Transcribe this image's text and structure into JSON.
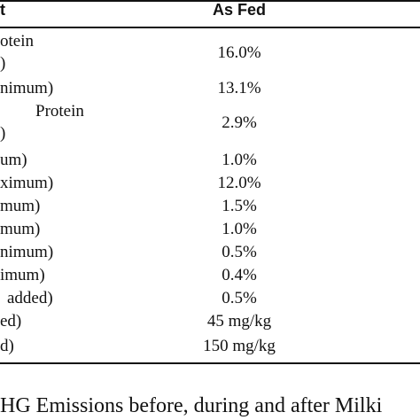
{
  "table": {
    "header": [
      "t",
      "As Fed"
    ],
    "rows": [
      {
        "label": [
          "otein",
          ")"
        ],
        "value": "16.0%"
      },
      {
        "label": [
          "nimum)"
        ],
        "value": "13.1%"
      },
      {
        "label": [
          "Protein",
          ")"
        ],
        "value": "2.9%"
      },
      {
        "label": [
          "um)"
        ],
        "value": "1.0%"
      },
      {
        "label": [
          "ximum)"
        ],
        "value": "12.0%"
      },
      {
        "label": [
          "mum)"
        ],
        "value": "1.5%"
      },
      {
        "label": [
          "mum)"
        ],
        "value": "1.0%"
      },
      {
        "label": [
          "nimum)"
        ],
        "value": "0.5%"
      },
      {
        "label": [
          "imum)"
        ],
        "value": "0.4%"
      },
      {
        "label": [
          "added)"
        ],
        "value": "0.5%"
      },
      {
        "label": [
          "ed)"
        ],
        "value": "45 mg/kg"
      },
      {
        "label": [
          "d)"
        ],
        "value": "150 mg/kg"
      }
    ]
  },
  "caption": "HG Emissions before, during and after Milki"
}
